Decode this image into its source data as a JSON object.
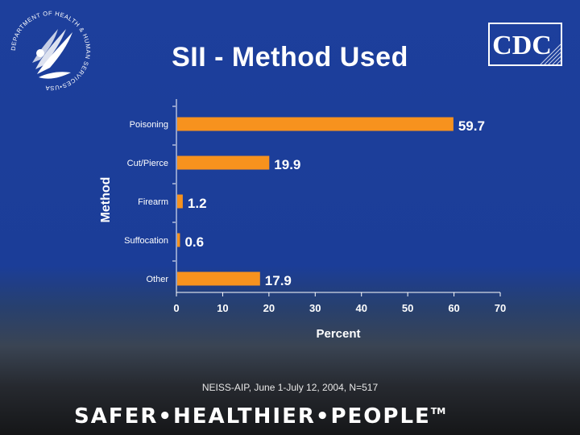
{
  "slide": {
    "title": "SII - Method Used",
    "footnote": "NEISS-AIP, June 1-July 12, 2004, N=517",
    "tagline": "SAFER•HEALTHIER•PEOPLE",
    "tagline_mark": "TM"
  },
  "logos": {
    "hhs_ring_text": "DEPARTMENT OF HEALTH & HUMAN SERVICES•USA",
    "cdc_text": "CDC"
  },
  "colors": {
    "background": "#1d3f9c",
    "bar": "#f7921e",
    "text": "#ffffff",
    "axis": "#ffffff"
  },
  "chart_data": {
    "type": "bar",
    "orientation": "horizontal",
    "categories": [
      "Poisoning",
      "Cut/Pierce",
      "Firearm",
      "Suffocation",
      "Other"
    ],
    "values": [
      59.7,
      19.9,
      1.2,
      0.6,
      17.9
    ],
    "value_labels": [
      "59.7",
      "19.9",
      "1.2",
      "0.6",
      "17.9"
    ],
    "xlabel": "Percent",
    "ylabel": "Method",
    "xlim": [
      0,
      70
    ],
    "xticks": [
      "0",
      "10",
      "20",
      "30",
      "40",
      "50",
      "60",
      "70"
    ],
    "grid": false,
    "legend": "none"
  }
}
